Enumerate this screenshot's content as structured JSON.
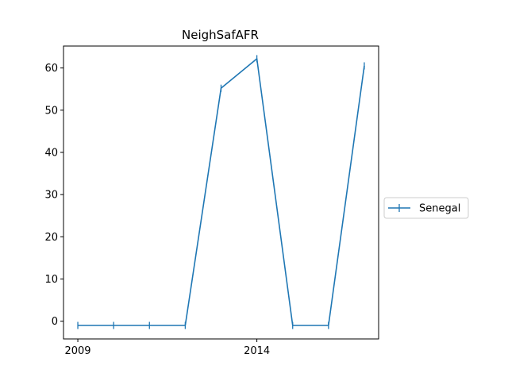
{
  "chart_data": {
    "type": "line",
    "title": "NeighSafAFR",
    "xlabel": "",
    "ylabel": "",
    "x": [
      2009,
      2010,
      2011,
      2012,
      2013,
      2014,
      2015,
      2016,
      2017
    ],
    "x_ticks": [
      2009,
      2014
    ],
    "x_tick_labels": [
      "2009",
      "2014"
    ],
    "xlim": [
      2008.6,
      2017.4
    ],
    "y_ticks": [
      0,
      10,
      20,
      30,
      40,
      50,
      60
    ],
    "y_tick_labels": [
      "0",
      "10",
      "20",
      "30",
      "40",
      "50",
      "60"
    ],
    "ylim": [
      -4.2,
      65.2
    ],
    "series": [
      {
        "name": "Senegal",
        "color": "#1f77b4",
        "marker": "vertical-tick",
        "values": [
          -1,
          -1,
          -1,
          -1,
          55.2,
          62.2,
          -1,
          -1,
          60.5
        ]
      }
    ],
    "grid": false,
    "legend": {
      "placement": "right",
      "entries": [
        "Senegal"
      ]
    }
  }
}
